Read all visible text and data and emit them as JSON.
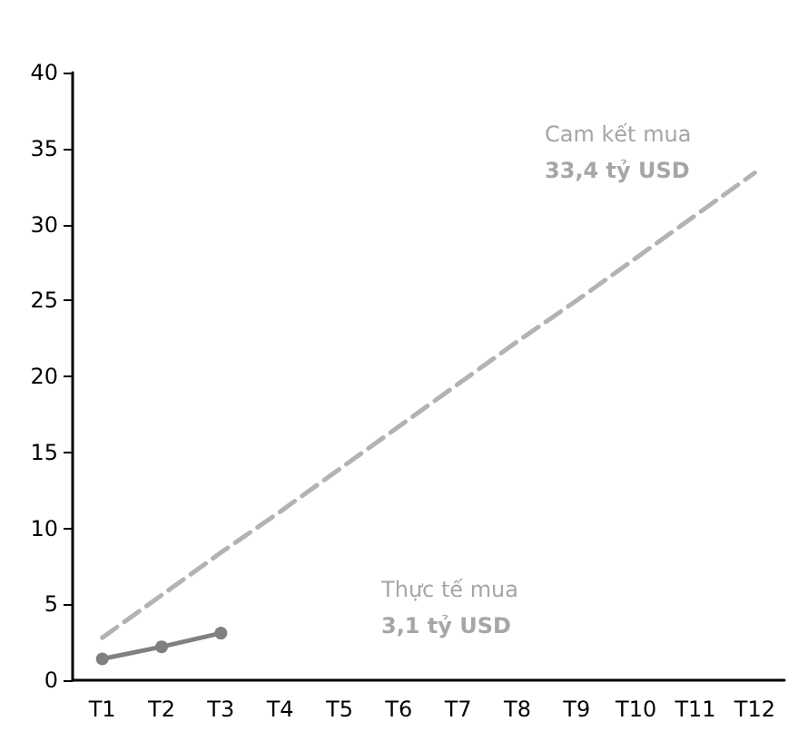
{
  "chart_data": {
    "type": "line",
    "categories": [
      "T1",
      "T2",
      "T3",
      "T4",
      "T5",
      "T6",
      "T7",
      "T8",
      "T9",
      "T10",
      "T11",
      "T12"
    ],
    "series": [
      {
        "color": "#b3b3b3",
        "line_style": "dashed",
        "marker": "none",
        "values": [
          2.8,
          5.6,
          8.4,
          11.1,
          13.9,
          16.7,
          19.5,
          22.3,
          25.0,
          27.8,
          30.6,
          33.4
        ]
      },
      {
        "color": "#808080",
        "line_style": "solid",
        "marker": "circle",
        "values": [
          1.4,
          2.2,
          3.1,
          null,
          null,
          null,
          null,
          null,
          null,
          null,
          null,
          null
        ]
      }
    ],
    "ylim": [
      0,
      40
    ],
    "yticks": [
      0,
      5,
      10,
      15,
      20,
      25,
      30,
      35,
      40
    ],
    "grid": false,
    "annotations": [
      "Cam kết mua",
      "33,4 tỷ USD",
      "Thực tế mua",
      "3,1 tỷ USD"
    ]
  }
}
